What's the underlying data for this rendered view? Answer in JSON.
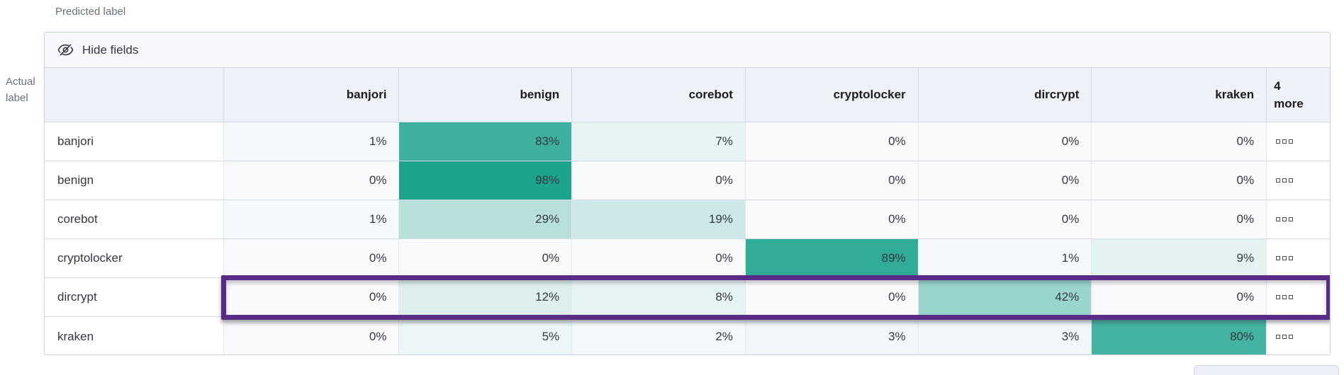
{
  "axis": {
    "predicted": "Predicted label",
    "actual": [
      "Actual",
      "label"
    ]
  },
  "toolbar": {
    "hide_fields_label": "Hide fields"
  },
  "grid": {
    "columns": [
      "banjori",
      "benign",
      "corebot",
      "cryptolocker",
      "dircrypt",
      "kraken"
    ],
    "more_column_label": "4 more",
    "value_suffix": "%",
    "rows": [
      {
        "label": "banjori",
        "values": [
          1,
          83,
          7,
          0,
          0,
          0
        ],
        "highlighted": false
      },
      {
        "label": "benign",
        "values": [
          0,
          98,
          0,
          0,
          0,
          0
        ],
        "highlighted": false
      },
      {
        "label": "corebot",
        "values": [
          1,
          29,
          19,
          0,
          0,
          0
        ],
        "highlighted": false
      },
      {
        "label": "cryptolocker",
        "values": [
          0,
          0,
          0,
          89,
          1,
          9
        ],
        "highlighted": false
      },
      {
        "label": "dircrypt",
        "values": [
          0,
          12,
          8,
          0,
          42,
          0
        ],
        "highlighted": true
      },
      {
        "label": "kraken",
        "values": [
          0,
          5,
          2,
          3,
          3,
          80
        ],
        "highlighted": false
      }
    ]
  },
  "colors": {
    "heat_base": "#17A28B",
    "cell_zero_bg": "#F8FAFC",
    "highlight": "#5A2A87",
    "border": "#D3DAE6",
    "header_bg": "#EEF1F7",
    "toolbar_bg": "#F7F8FC",
    "muted_text": "#69707D",
    "text": "#343741"
  },
  "chart_data": {
    "type": "heatmap",
    "xlabel": "Predicted label",
    "ylabel": "Actual label",
    "x_categories": [
      "banjori",
      "benign",
      "corebot",
      "cryptolocker",
      "dircrypt",
      "kraken"
    ],
    "y_categories": [
      "banjori",
      "benign",
      "corebot",
      "cryptolocker",
      "dircrypt",
      "kraken"
    ],
    "values_percent": [
      [
        1,
        83,
        7,
        0,
        0,
        0
      ],
      [
        0,
        98,
        0,
        0,
        0,
        0
      ],
      [
        1,
        29,
        19,
        0,
        0,
        0
      ],
      [
        0,
        0,
        0,
        89,
        1,
        9
      ],
      [
        0,
        12,
        8,
        0,
        42,
        0
      ],
      [
        0,
        5,
        2,
        3,
        3,
        80
      ]
    ],
    "hidden_columns_label": "4 more",
    "highlighted_row": "dircrypt"
  }
}
